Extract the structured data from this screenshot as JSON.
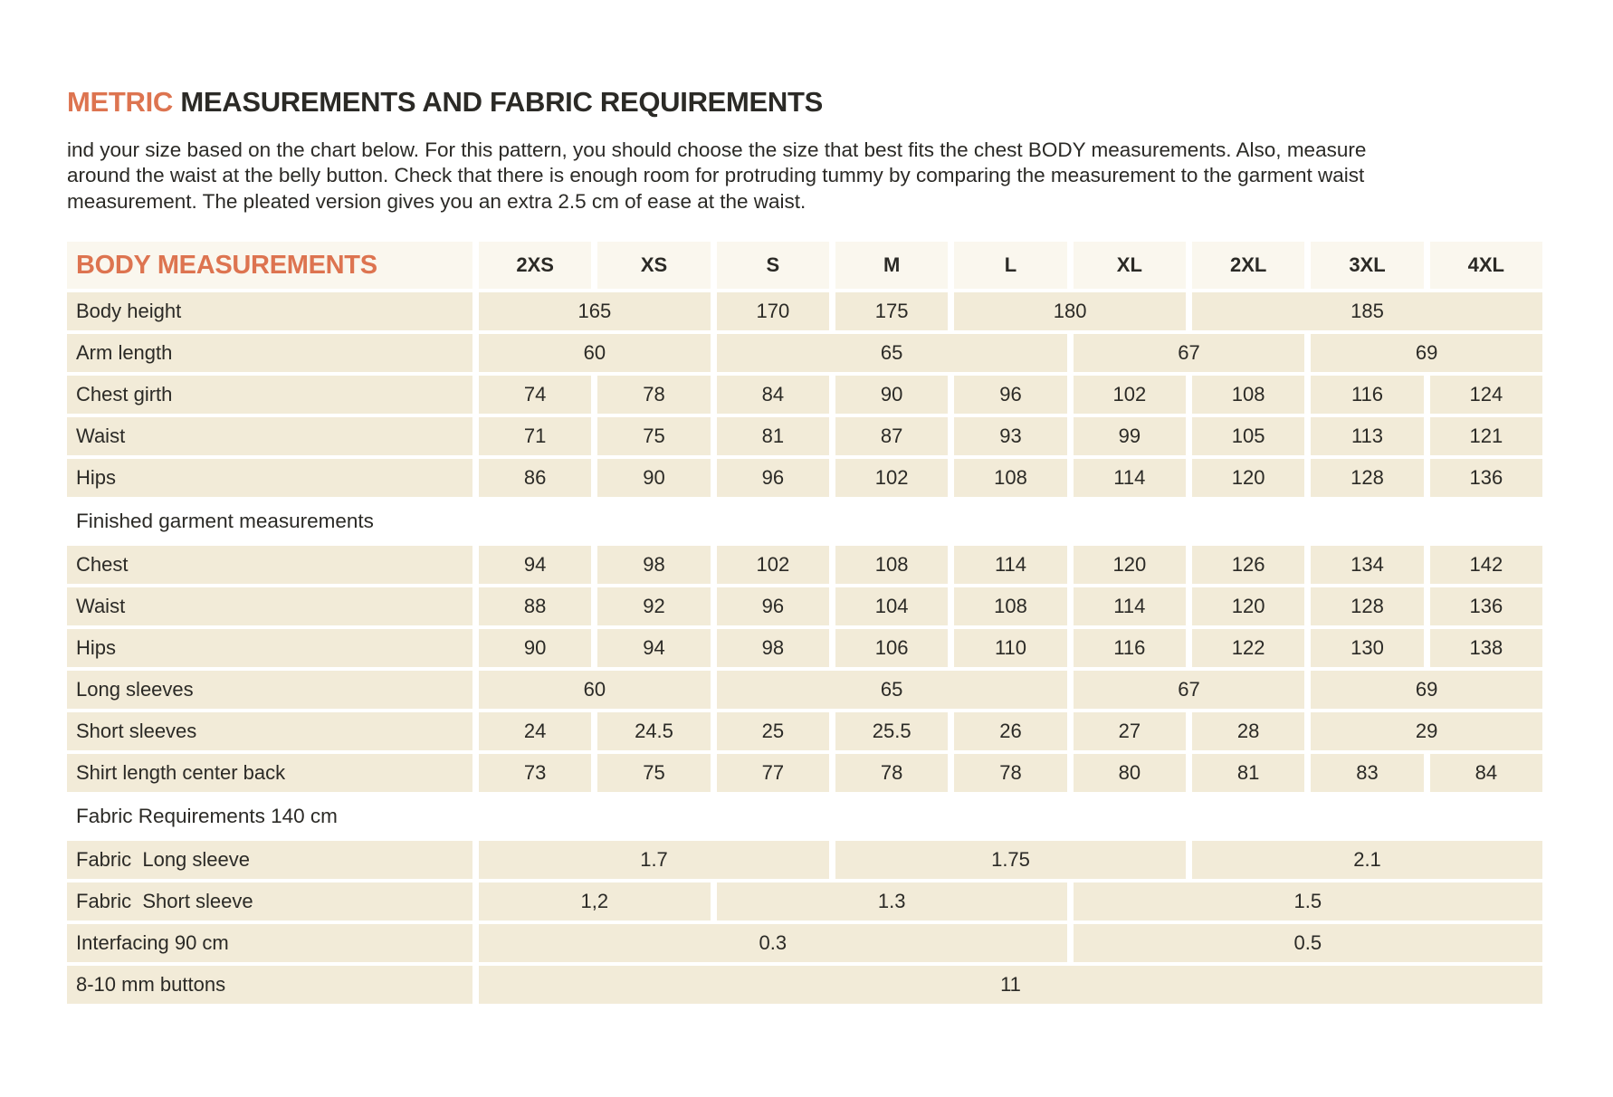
{
  "page": {
    "title_accent": "METRIC",
    "title_rest": " MEASUREMENTS AND FABRIC REQUIREMENTS",
    "intro": "ind your size based on the chart below. For this pattern, you should choose the size that best fits the chest BODY measurements. Also, measure around the waist at the belly button. Check that there is enough room for protruding tummy by comparing the measurement to the garment waist measurement. The pleated version gives you an extra 2.5 cm of ease at the waist."
  },
  "colors": {
    "accent_orange": "#dd7450",
    "cell_beige": "#f2ebd8",
    "header_band": "#faf7ee",
    "text_dark": "#2b2a26"
  },
  "table": {
    "corner_label": "BODY MEASUREMENTS",
    "size_columns": [
      "2XS",
      "XS",
      "S",
      "M",
      "L",
      "XL",
      "2XL",
      "3XL",
      "4XL"
    ],
    "sections": [
      {
        "title": null,
        "rows": [
          {
            "label": "Body height",
            "cells": [
              {
                "v": "165",
                "span": 2
              },
              {
                "v": "170",
                "span": 1
              },
              {
                "v": "175",
                "span": 1
              },
              {
                "v": "180",
                "span": 2
              },
              {
                "v": "185",
                "span": 3
              }
            ]
          },
          {
            "label": "Arm length",
            "cells": [
              {
                "v": "60",
                "span": 2
              },
              {
                "v": "65",
                "span": 3
              },
              {
                "v": "67",
                "span": 2
              },
              {
                "v": "69",
                "span": 2
              }
            ]
          },
          {
            "label": "Chest girth",
            "cells": [
              {
                "v": "74",
                "span": 1
              },
              {
                "v": "78",
                "span": 1
              },
              {
                "v": "84",
                "span": 1
              },
              {
                "v": "90",
                "span": 1
              },
              {
                "v": "96",
                "span": 1
              },
              {
                "v": "102",
                "span": 1
              },
              {
                "v": "108",
                "span": 1
              },
              {
                "v": "116",
                "span": 1
              },
              {
                "v": "124",
                "span": 1
              }
            ]
          },
          {
            "label": "Waist",
            "cells": [
              {
                "v": "71",
                "span": 1
              },
              {
                "v": "75",
                "span": 1
              },
              {
                "v": "81",
                "span": 1
              },
              {
                "v": "87",
                "span": 1
              },
              {
                "v": "93",
                "span": 1
              },
              {
                "v": "99",
                "span": 1
              },
              {
                "v": "105",
                "span": 1
              },
              {
                "v": "113",
                "span": 1
              },
              {
                "v": "121",
                "span": 1
              }
            ]
          },
          {
            "label": "Hips",
            "cells": [
              {
                "v": "86",
                "span": 1
              },
              {
                "v": "90",
                "span": 1
              },
              {
                "v": "96",
                "span": 1
              },
              {
                "v": "102",
                "span": 1
              },
              {
                "v": "108",
                "span": 1
              },
              {
                "v": "114",
                "span": 1
              },
              {
                "v": "120",
                "span": 1
              },
              {
                "v": "128",
                "span": 1
              },
              {
                "v": "136",
                "span": 1
              }
            ]
          }
        ]
      },
      {
        "title": "Finished garment measurements",
        "rows": [
          {
            "label": "Chest",
            "cells": [
              {
                "v": "94",
                "span": 1
              },
              {
                "v": "98",
                "span": 1
              },
              {
                "v": "102",
                "span": 1
              },
              {
                "v": "108",
                "span": 1
              },
              {
                "v": "114",
                "span": 1
              },
              {
                "v": "120",
                "span": 1
              },
              {
                "v": "126",
                "span": 1
              },
              {
                "v": "134",
                "span": 1
              },
              {
                "v": "142",
                "span": 1
              }
            ]
          },
          {
            "label": "Waist",
            "cells": [
              {
                "v": "88",
                "span": 1
              },
              {
                "v": "92",
                "span": 1
              },
              {
                "v": "96",
                "span": 1
              },
              {
                "v": "104",
                "span": 1
              },
              {
                "v": "108",
                "span": 1
              },
              {
                "v": "114",
                "span": 1
              },
              {
                "v": "120",
                "span": 1
              },
              {
                "v": "128",
                "span": 1
              },
              {
                "v": "136",
                "span": 1
              }
            ]
          },
          {
            "label": "Hips",
            "cells": [
              {
                "v": "90",
                "span": 1
              },
              {
                "v": "94",
                "span": 1
              },
              {
                "v": "98",
                "span": 1
              },
              {
                "v": "106",
                "span": 1
              },
              {
                "v": "110",
                "span": 1
              },
              {
                "v": "116",
                "span": 1
              },
              {
                "v": "122",
                "span": 1
              },
              {
                "v": "130",
                "span": 1
              },
              {
                "v": "138",
                "span": 1
              }
            ]
          },
          {
            "label": "Long sleeves",
            "cells": [
              {
                "v": "60",
                "span": 2
              },
              {
                "v": "65",
                "span": 3
              },
              {
                "v": "67",
                "span": 2
              },
              {
                "v": "69",
                "span": 2
              }
            ]
          },
          {
            "label": "Short sleeves",
            "cells": [
              {
                "v": "24",
                "span": 1
              },
              {
                "v": "24.5",
                "span": 1
              },
              {
                "v": "25",
                "span": 1
              },
              {
                "v": "25.5",
                "span": 1
              },
              {
                "v": "26",
                "span": 1
              },
              {
                "v": "27",
                "span": 1
              },
              {
                "v": "28",
                "span": 1
              },
              {
                "v": "29",
                "span": 2
              }
            ]
          },
          {
            "label": "Shirt length center back",
            "cells": [
              {
                "v": "73",
                "span": 1
              },
              {
                "v": "75",
                "span": 1
              },
              {
                "v": "77",
                "span": 1
              },
              {
                "v": "78",
                "span": 1
              },
              {
                "v": "78",
                "span": 1
              },
              {
                "v": "80",
                "span": 1
              },
              {
                "v": "81",
                "span": 1
              },
              {
                "v": "83",
                "span": 1
              },
              {
                "v": "84",
                "span": 1
              }
            ]
          }
        ]
      },
      {
        "title": "Fabric Requirements 140 cm",
        "rows": [
          {
            "label": "Fabric  Long sleeve",
            "cells": [
              {
                "v": "1.7",
                "span": 3
              },
              {
                "v": "1.75",
                "span": 3
              },
              {
                "v": "2.1",
                "span": 3
              }
            ]
          },
          {
            "label": "Fabric  Short sleeve",
            "cells": [
              {
                "v": "1,2",
                "span": 2
              },
              {
                "v": "1.3",
                "span": 3
              },
              {
                "v": "1.5",
                "span": 4
              }
            ]
          },
          {
            "label": "Interfacing 90 cm",
            "cells": [
              {
                "v": "0.3",
                "span": 5
              },
              {
                "v": "0.5",
                "span": 4
              }
            ]
          },
          {
            "label": "8-10 mm buttons",
            "cells": [
              {
                "v": "11",
                "span": 9
              }
            ]
          }
        ]
      }
    ]
  }
}
